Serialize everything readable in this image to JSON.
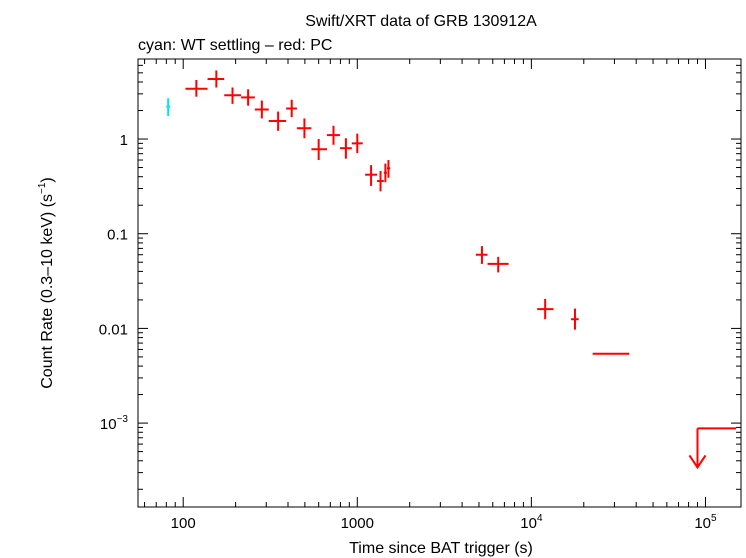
{
  "chart_data": {
    "type": "scatter",
    "title": "Swift/XRT data of GRB 130912A",
    "subtitle": "cyan: WT settling – red: PC",
    "xlabel": "Time since BAT trigger (s)",
    "ylabel": "Count Rate (0.3–10 keV) (s",
    "ylabel_exp": "−1",
    "ylabel_close": ")",
    "xscale": "log",
    "yscale": "log",
    "xlim": [
      55,
      160000
    ],
    "ylim": [
      0.00013,
      7
    ],
    "grid": false,
    "x_ticks": [
      {
        "value": 100,
        "label": "100"
      },
      {
        "value": 1000,
        "label": "1000"
      },
      {
        "value": 10000,
        "base": "10",
        "exp": "4"
      },
      {
        "value": 100000,
        "base": "10",
        "exp": "5"
      }
    ],
    "y_ticks": [
      {
        "value": 1,
        "label": "1"
      },
      {
        "value": 0.1,
        "label": "0.1"
      },
      {
        "value": 0.01,
        "label": "0.01"
      },
      {
        "value": 0.001,
        "base": "10",
        "exp": "−3"
      }
    ],
    "colors": {
      "wt": "#00e5ee",
      "pc": "#ff0000"
    },
    "series": [
      {
        "mode": "WT settling",
        "color": "#00e5ee",
        "points": [
          {
            "x": 82,
            "xlo": 80,
            "xhi": 84,
            "y": 2.2,
            "ylo": 1.75,
            "yhi": 2.7
          }
        ]
      },
      {
        "mode": "PC",
        "color": "#ff0000",
        "points": [
          {
            "x": 119,
            "xlo": 103,
            "xhi": 138,
            "y": 3.4,
            "ylo": 2.8,
            "yhi": 4.2
          },
          {
            "x": 155,
            "xlo": 138,
            "xhi": 172,
            "y": 4.3,
            "ylo": 3.5,
            "yhi": 5.3
          },
          {
            "x": 192,
            "xlo": 172,
            "xhi": 215,
            "y": 2.9,
            "ylo": 2.35,
            "yhi": 3.5
          },
          {
            "x": 236,
            "xlo": 215,
            "xhi": 258,
            "y": 2.75,
            "ylo": 2.25,
            "yhi": 3.35
          },
          {
            "x": 283,
            "xlo": 258,
            "xhi": 310,
            "y": 2.05,
            "ylo": 1.65,
            "yhi": 2.55
          },
          {
            "x": 351,
            "xlo": 310,
            "xhi": 390,
            "y": 1.55,
            "ylo": 1.22,
            "yhi": 1.95
          },
          {
            "x": 420,
            "xlo": 390,
            "xhi": 450,
            "y": 2.1,
            "ylo": 1.7,
            "yhi": 2.6
          },
          {
            "x": 497,
            "xlo": 450,
            "xhi": 545,
            "y": 1.3,
            "ylo": 1.02,
            "yhi": 1.65
          },
          {
            "x": 600,
            "xlo": 545,
            "xhi": 670,
            "y": 0.78,
            "ylo": 0.6,
            "yhi": 1.0
          },
          {
            "x": 730,
            "xlo": 670,
            "xhi": 795,
            "y": 1.1,
            "ylo": 0.87,
            "yhi": 1.38
          },
          {
            "x": 860,
            "xlo": 795,
            "xhi": 930,
            "y": 0.8,
            "ylo": 0.62,
            "yhi": 1.02
          },
          {
            "x": 1000,
            "xlo": 930,
            "xhi": 1075,
            "y": 0.9,
            "ylo": 0.71,
            "yhi": 1.14
          },
          {
            "x": 1200,
            "xlo": 1110,
            "xhi": 1300,
            "y": 0.42,
            "ylo": 0.32,
            "yhi": 0.53
          },
          {
            "x": 1360,
            "xlo": 1300,
            "xhi": 1420,
            "y": 0.36,
            "ylo": 0.28,
            "yhi": 0.46
          },
          {
            "x": 1450,
            "xlo": 1420,
            "xhi": 1480,
            "y": 0.44,
            "ylo": 0.35,
            "yhi": 0.55
          },
          {
            "x": 1510,
            "xlo": 1480,
            "xhi": 1545,
            "y": 0.49,
            "ylo": 0.39,
            "yhi": 0.6
          },
          {
            "x": 5200,
            "xlo": 4800,
            "xhi": 5600,
            "y": 0.06,
            "ylo": 0.048,
            "yhi": 0.074
          },
          {
            "x": 6450,
            "xlo": 5600,
            "xhi": 7400,
            "y": 0.048,
            "ylo": 0.039,
            "yhi": 0.057
          },
          {
            "x": 12000,
            "xlo": 10800,
            "xhi": 13400,
            "y": 0.016,
            "ylo": 0.0125,
            "yhi": 0.0205
          },
          {
            "x": 17800,
            "xlo": 16900,
            "xhi": 18700,
            "y": 0.0125,
            "ylo": 0.0097,
            "yhi": 0.0162
          },
          {
            "x": 28000,
            "xlo": 22500,
            "xhi": 36500,
            "y": 0.0054,
            "ylo": 0.0054,
            "yhi": 0.0054
          }
        ],
        "upper_limits": [
          {
            "x": 90000,
            "xlo": 90000,
            "xhi": 150000,
            "y": 0.00088,
            "arrow_to": 0.00034
          }
        ]
      }
    ]
  }
}
